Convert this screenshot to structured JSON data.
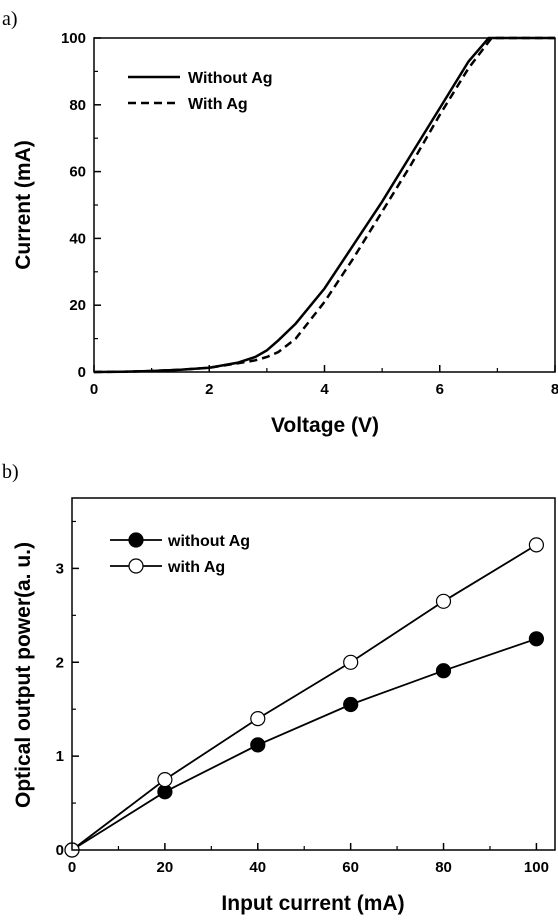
{
  "panels": [
    {
      "label": "a)",
      "chart_data": {
        "type": "line",
        "title": "",
        "xlabel": "Voltage (V)",
        "ylabel": "Current (mA)",
        "xlim": [
          0,
          8
        ],
        "ylim": [
          0,
          100
        ],
        "xticks": [
          0,
          2,
          4,
          6,
          8
        ],
        "yticks": [
          0,
          20,
          40,
          60,
          80,
          100
        ],
        "grid": false,
        "legend_position": "top-left",
        "series": [
          {
            "name": "Without Ag",
            "style": "solid",
            "color": "#000000",
            "x": [
              0,
              0.5,
              1.0,
              1.5,
              2.0,
              2.5,
              2.8,
              3.0,
              3.2,
              3.5,
              4.0,
              4.5,
              5.0,
              5.5,
              6.0,
              6.5,
              6.85,
              7.0,
              7.5,
              8.0
            ],
            "y": [
              0,
              0.1,
              0.3,
              0.7,
              1.3,
              2.8,
              4.5,
              6.5,
              9.5,
              14.5,
              25,
              38,
              51,
              65,
              79,
              93,
              100,
              100,
              100,
              100
            ]
          },
          {
            "name": "With Ag",
            "style": "dashed",
            "color": "#000000",
            "x": [
              0,
              0.5,
              1.0,
              1.5,
              2.0,
              2.5,
              2.8,
              3.0,
              3.2,
              3.5,
              4.0,
              4.5,
              5.0,
              5.5,
              6.0,
              6.5,
              6.9,
              7.0,
              7.5,
              8.0
            ],
            "y": [
              0,
              0.1,
              0.3,
              0.7,
              1.3,
              2.6,
              3.5,
              4.5,
              6.0,
              10.0,
              21,
              34,
              48,
              62,
              77,
              91,
              100,
              100,
              100,
              100
            ]
          }
        ]
      }
    },
    {
      "label": "b)",
      "chart_data": {
        "type": "line",
        "title": "",
        "xlabel": "Input current (mA)",
        "ylabel": "Optical output power(a. u.)",
        "xlim": [
          0,
          104
        ],
        "ylim": [
          0,
          3.75
        ],
        "xticks": [
          0,
          20,
          40,
          60,
          80,
          100
        ],
        "yticks": [
          0,
          1,
          2,
          3
        ],
        "grid": false,
        "legend_position": "top-left",
        "series": [
          {
            "name": "without Ag",
            "marker": "filled-circle",
            "color": "#000000",
            "x": [
              0,
              20,
              40,
              60,
              80,
              100
            ],
            "y": [
              0,
              0.62,
              1.12,
              1.55,
              1.91,
              2.25
            ]
          },
          {
            "name": "with Ag",
            "marker": "open-circle",
            "color": "#000000",
            "x": [
              0,
              20,
              40,
              60,
              80,
              100
            ],
            "y": [
              0,
              0.75,
              1.4,
              2.0,
              2.65,
              3.25
            ]
          }
        ]
      }
    }
  ]
}
